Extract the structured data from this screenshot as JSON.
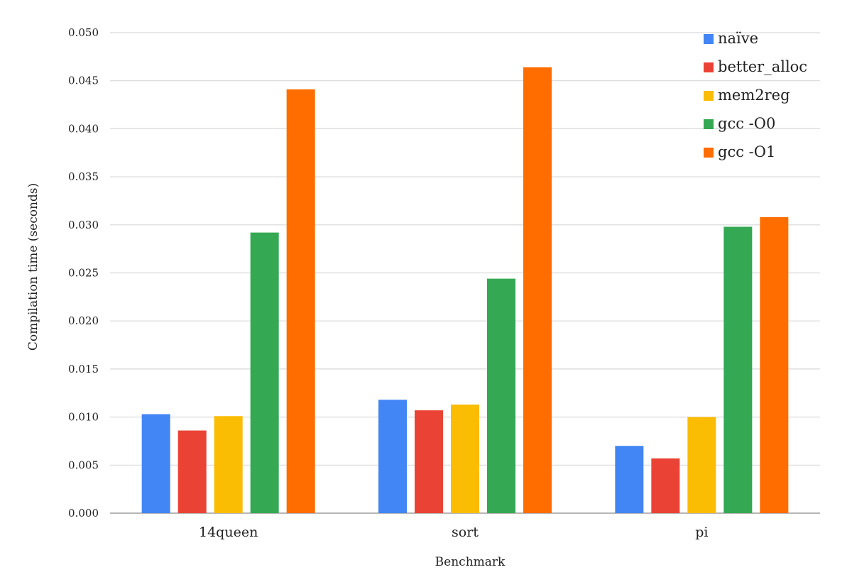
{
  "chart_data": {
    "type": "bar",
    "title": "",
    "xlabel": "Benchmark",
    "ylabel": "Compilation time (seconds)",
    "categories": [
      "14queen",
      "sort",
      "pi"
    ],
    "ylim": [
      0,
      0.05
    ],
    "yticks": [
      "0.000",
      "0.005",
      "0.010",
      "0.015",
      "0.020",
      "0.025",
      "0.030",
      "0.035",
      "0.040",
      "0.045",
      "0.050"
    ],
    "grid": true,
    "legend_position": "top-right",
    "series": [
      {
        "name": "naïve",
        "color": "#4285f4",
        "values": [
          0.0103,
          0.0118,
          0.007
        ]
      },
      {
        "name": "better_alloc",
        "color": "#ea4335",
        "values": [
          0.0086,
          0.0107,
          0.0057
        ]
      },
      {
        "name": "mem2reg",
        "color": "#fbbc04",
        "values": [
          0.0101,
          0.0113,
          0.01
        ]
      },
      {
        "name": "gcc -O0",
        "color": "#34a853",
        "values": [
          0.0292,
          0.0244,
          0.0298
        ]
      },
      {
        "name": "gcc -O1",
        "color": "#ff6d01",
        "values": [
          0.0441,
          0.0464,
          0.0308
        ]
      }
    ]
  }
}
